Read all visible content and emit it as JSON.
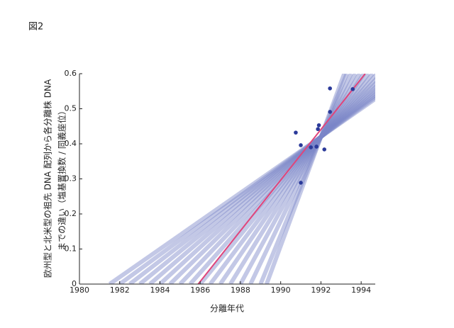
{
  "figure_label": "図2",
  "chart_data": {
    "type": "scatter",
    "xlabel": "分離年代",
    "ylabel": [
      "欧州型と北米型の祖先 DNA 配列から各分離株 DNA",
      "までの違い（塩基置換数 / 同義座位）"
    ],
    "xlim": [
      1980,
      1994.7
    ],
    "ylim": [
      0,
      0.6
    ],
    "xticks": [
      1980,
      1982,
      1984,
      1986,
      1988,
      1990,
      1992,
      1994
    ],
    "yticks": [
      0,
      0.1,
      0.2,
      0.3,
      0.4,
      0.5,
      0.6
    ],
    "x": [
      1990.75,
      1991.0,
      1991.0,
      1991.5,
      1991.78,
      1991.85,
      1991.9,
      1992.17,
      1992.45,
      1992.45,
      1993.58
    ],
    "values": [
      0.432,
      0.396,
      0.289,
      0.39,
      0.392,
      0.442,
      0.453,
      0.384,
      0.558,
      0.491,
      0.556
    ],
    "color": "#2b3a9a",
    "regression_line": {
      "color": "#e0457b",
      "x": [
        1985.9,
        1994.2
      ],
      "y": [
        0,
        0.6
      ]
    },
    "bootstrap_color": "#7b86c8",
    "bootstrap_lines": [
      {
        "x": [
          1981.5,
          1996.5
        ],
        "y": [
          0,
          0.6
        ]
      },
      {
        "x": [
          1982,
          1996.29
        ],
        "y": [
          0,
          0.6
        ]
      },
      {
        "x": [
          1982.5,
          1996.07
        ],
        "y": [
          0,
          0.6
        ]
      },
      {
        "x": [
          1983,
          1995.86
        ],
        "y": [
          0,
          0.6
        ]
      },
      {
        "x": [
          1983.5,
          1995.64
        ],
        "y": [
          0,
          0.6
        ]
      },
      {
        "x": [
          1984,
          1995.43
        ],
        "y": [
          0,
          0.6
        ]
      },
      {
        "x": [
          1984.5,
          1995.21
        ],
        "y": [
          0,
          0.6
        ]
      },
      {
        "x": [
          1985,
          1995
        ],
        "y": [
          0,
          0.6
        ]
      },
      {
        "x": [
          1985.5,
          1994.79
        ],
        "y": [
          0,
          0.6
        ]
      },
      {
        "x": [
          1986,
          1994.57
        ],
        "y": [
          0,
          0.6
        ]
      },
      {
        "x": [
          1986.5,
          1994.36
        ],
        "y": [
          0,
          0.6
        ]
      },
      {
        "x": [
          1987,
          1994.14
        ],
        "y": [
          0,
          0.6
        ]
      },
      {
        "x": [
          1987.5,
          1993.93
        ],
        "y": [
          0,
          0.6
        ]
      },
      {
        "x": [
          1988,
          1993.71
        ],
        "y": [
          0,
          0.6
        ]
      },
      {
        "x": [
          1988.5,
          1993.5
        ],
        "y": [
          0,
          0.6
        ]
      },
      {
        "x": [
          1989,
          1993.29
        ],
        "y": [
          0,
          0.6
        ]
      },
      {
        "x": [
          1989.3,
          1993.16
        ],
        "y": [
          0,
          0.6
        ]
      }
    ]
  }
}
